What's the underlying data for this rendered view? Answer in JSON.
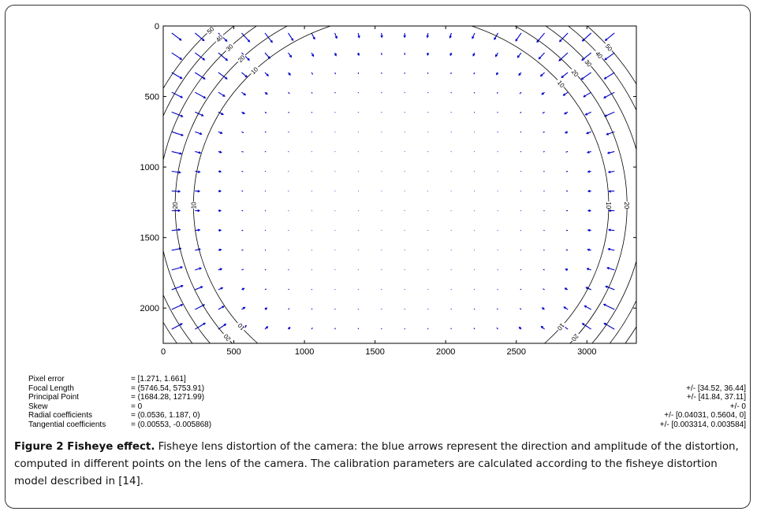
{
  "chart_data": {
    "type": "quiver",
    "xlim": [
      0,
      3350
    ],
    "ylim": [
      2250,
      0
    ],
    "x_ticks": [
      0,
      500,
      1000,
      1500,
      2000,
      2500,
      3000
    ],
    "y_ticks": [
      0,
      500,
      1000,
      1500,
      2000
    ],
    "image_size": [
      3350,
      2250
    ],
    "principal_point": [
      1684.28,
      1271.99
    ],
    "contour_levels": [
      10,
      20,
      30,
      40,
      50
    ],
    "arrow_color": "#0000cc",
    "contour_color": "#000000"
  },
  "params": [
    {
      "label": "Pixel error",
      "value": "= [1.271, 1.661]",
      "unc": ""
    },
    {
      "label": "Focal Length",
      "value": "= (5746.54, 5753.91)",
      "unc": "+/- [34.52, 36.44]"
    },
    {
      "label": "Principal Point",
      "value": "= (1684.28, 1271.99)",
      "unc": "+/- [41.84, 37.11]"
    },
    {
      "label": "Skew",
      "value": "= 0",
      "unc": "+/- 0"
    },
    {
      "label": "Radial coefficients",
      "value": "= (0.0536, 1.187, 0)",
      "unc": "+/- [0.04031, 0.5604, 0]"
    },
    {
      "label": "Tangential coefficients",
      "value": "= (0.00553, -0.005868)",
      "unc": "+/- [0.003314, 0.003584]"
    }
  ],
  "caption": {
    "title": "Figure 2 Fisheye effect.",
    "text": " Fisheye lens distortion of the camera: the blue arrows represent the direction and amplitude of the distortion, computed in different points on the lens of the camera. The calibration parameters are calculated according to the fisheye distortion model described in [14]."
  }
}
